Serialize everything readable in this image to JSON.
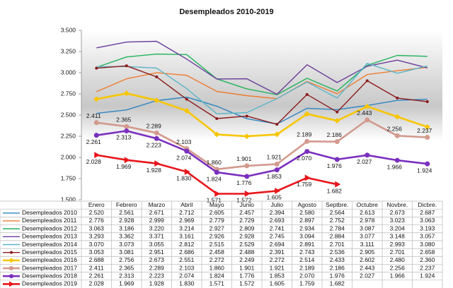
{
  "chart_data": {
    "type": "line",
    "title": "Desempleados 2010-2019",
    "categories": [
      "Enero",
      "Febrero",
      "Marzo",
      "Abril",
      "Mayo",
      "Junio",
      "Julio",
      "Agosto",
      "Septbre.",
      "Octubre",
      "Novbre.",
      "Dicbre."
    ],
    "ylim": [
      1500,
      3500
    ],
    "yticks": [
      {
        "value": 1500,
        "label": "1.500"
      },
      {
        "value": 1750,
        "label": "1.750"
      },
      {
        "value": 2000,
        "label": "2.000"
      },
      {
        "value": 2250,
        "label": "2.250"
      },
      {
        "value": 2500,
        "label": "2.500"
      },
      {
        "value": 2750,
        "label": "2.750"
      },
      {
        "value": 3000,
        "label": "3.000"
      },
      {
        "value": 3250,
        "label": "3.250"
      },
      {
        "value": 3500,
        "label": "3.500"
      }
    ],
    "grid": false,
    "series": [
      {
        "name": "Desempleados 2010",
        "color": "#2e86c1",
        "marker": "none",
        "show_labels": false,
        "values": [
          2520,
          2561,
          2671,
          2712,
          2605,
          2457,
          2394,
          2580,
          2564,
          2613,
          2673,
          2687
        ],
        "value_labels": [
          "2.520",
          "2.561",
          "2.671",
          "2.712",
          "2.605",
          "2.457",
          "2.394",
          "2.580",
          "2.564",
          "2.613",
          "2.673",
          "2.687"
        ]
      },
      {
        "name": "Desempleados 2011",
        "color": "#ed7d31",
        "marker": "none",
        "show_labels": false,
        "values": [
          2776,
          2928,
          2999,
          2969,
          2779,
          2729,
          2693,
          2897,
          2752,
          2978,
          3023,
          3063
        ],
        "value_labels": [
          "2.776",
          "2.928",
          "2.999",
          "2.969",
          "2.779",
          "2.729",
          "2.693",
          "2.897",
          "2.752",
          "2.978",
          "3.023",
          "3.063"
        ]
      },
      {
        "name": "Desempleados 2012",
        "color": "#22b35b",
        "marker": "none",
        "show_labels": false,
        "values": [
          3063,
          3186,
          3220,
          3214,
          2927,
          2809,
          2741,
          2934,
          2784,
          3087,
          3204,
          3193
        ],
        "value_labels": [
          "3.063",
          "3.186",
          "3.220",
          "3.214",
          "2.927",
          "2.809",
          "2.741",
          "2.934",
          "2.784",
          "3.087",
          "3.204",
          "3.193"
        ]
      },
      {
        "name": "Desempleados 2013",
        "color": "#6a3d9a",
        "marker": "none",
        "show_labels": false,
        "values": [
          3293,
          3362,
          3371,
          3161,
          2926,
          2928,
          2745,
          3094,
          2884,
          3077,
          3148,
          3057
        ],
        "value_labels": [
          "3.293",
          "3.362",
          "3.371",
          "3.161",
          "2.926",
          "2.928",
          "2.745",
          "3.094",
          "2.884",
          "3.077",
          "3.148",
          "3.057"
        ]
      },
      {
        "name": "Desempleados 2014",
        "color": "#5ab4c8",
        "marker": "none",
        "show_labels": false,
        "values": [
          3070,
          3073,
          3055,
          2812,
          2515,
          2529,
          2694,
          2891,
          2701,
          3111,
          2993,
          3080
        ],
        "value_labels": [
          "3.070",
          "3.073",
          "3.055",
          "2.812",
          "2.515",
          "2.529",
          "2.694",
          "2.891",
          "2.701",
          "3.111",
          "2.993",
          "3.080"
        ]
      },
      {
        "name": "Desempleados 2015",
        "color": "#8b1a1a",
        "marker": "dot",
        "show_labels": false,
        "values": [
          3053,
          3081,
          2951,
          2686,
          2458,
          2488,
          2391,
          2743,
          2536,
          2905,
          2701,
          2658
        ],
        "value_labels": [
          "3.053",
          "3.081",
          "2.951",
          "2.686",
          "2.458",
          "2.488",
          "2.391",
          "2.743",
          "2.536",
          "2.905",
          "2.701",
          "2.658"
        ]
      },
      {
        "name": "Desempleados 2016",
        "color": "#f7c600",
        "marker": "diamond",
        "show_labels": false,
        "values": [
          2688,
          2756,
          2673,
          2551,
          2272,
          2249,
          2272,
          2514,
          2433,
          2602,
          2480,
          2360
        ],
        "value_labels": [
          "2.688",
          "2.756",
          "2.673",
          "2.551",
          "2.272",
          "2.249",
          "2.272",
          "2.514",
          "2.433",
          "2.602",
          "2.480",
          "2.360"
        ]
      },
      {
        "name": "Desempleados 2017",
        "color": "#d39a8e",
        "marker": "circle",
        "show_labels": true,
        "values": [
          2411,
          2365,
          2289,
          2103,
          1860,
          1901,
          1921,
          2189,
          2186,
          2443,
          2256,
          2237
        ],
        "value_labels": [
          "2.411",
          "2.365",
          "2.289",
          "2.103",
          "1.860",
          "1.901",
          "1.921",
          "2.189",
          "2.186",
          "2.443",
          "2.256",
          "2.237"
        ]
      },
      {
        "name": "Desempleados 2018",
        "color": "#7b2fbf",
        "marker": "circle",
        "show_labels": true,
        "values": [
          2261,
          2313,
          2223,
          2074,
          1824,
          1776,
          1853,
          2070,
          1976,
          2027,
          1966,
          1924
        ],
        "value_labels": [
          "2.261",
          "2.313",
          "2.223",
          "2.074",
          "1.824",
          "1.776",
          "1.853",
          "2.070",
          "1.976",
          "2.027",
          "1.966",
          "1.924"
        ]
      },
      {
        "name": "Desempleados 2019",
        "color": "#e8161b",
        "marker": "triangle",
        "show_labels": true,
        "values": [
          2028,
          1969,
          1928,
          1830,
          1571,
          1572,
          1605,
          1759,
          1682,
          null,
          null,
          null
        ],
        "value_labels": [
          "2.028",
          "1.969",
          "1.928",
          "1.830",
          "1.571",
          "1.572",
          "1.605",
          "1.759",
          "1.682",
          null,
          null,
          null
        ]
      }
    ]
  }
}
